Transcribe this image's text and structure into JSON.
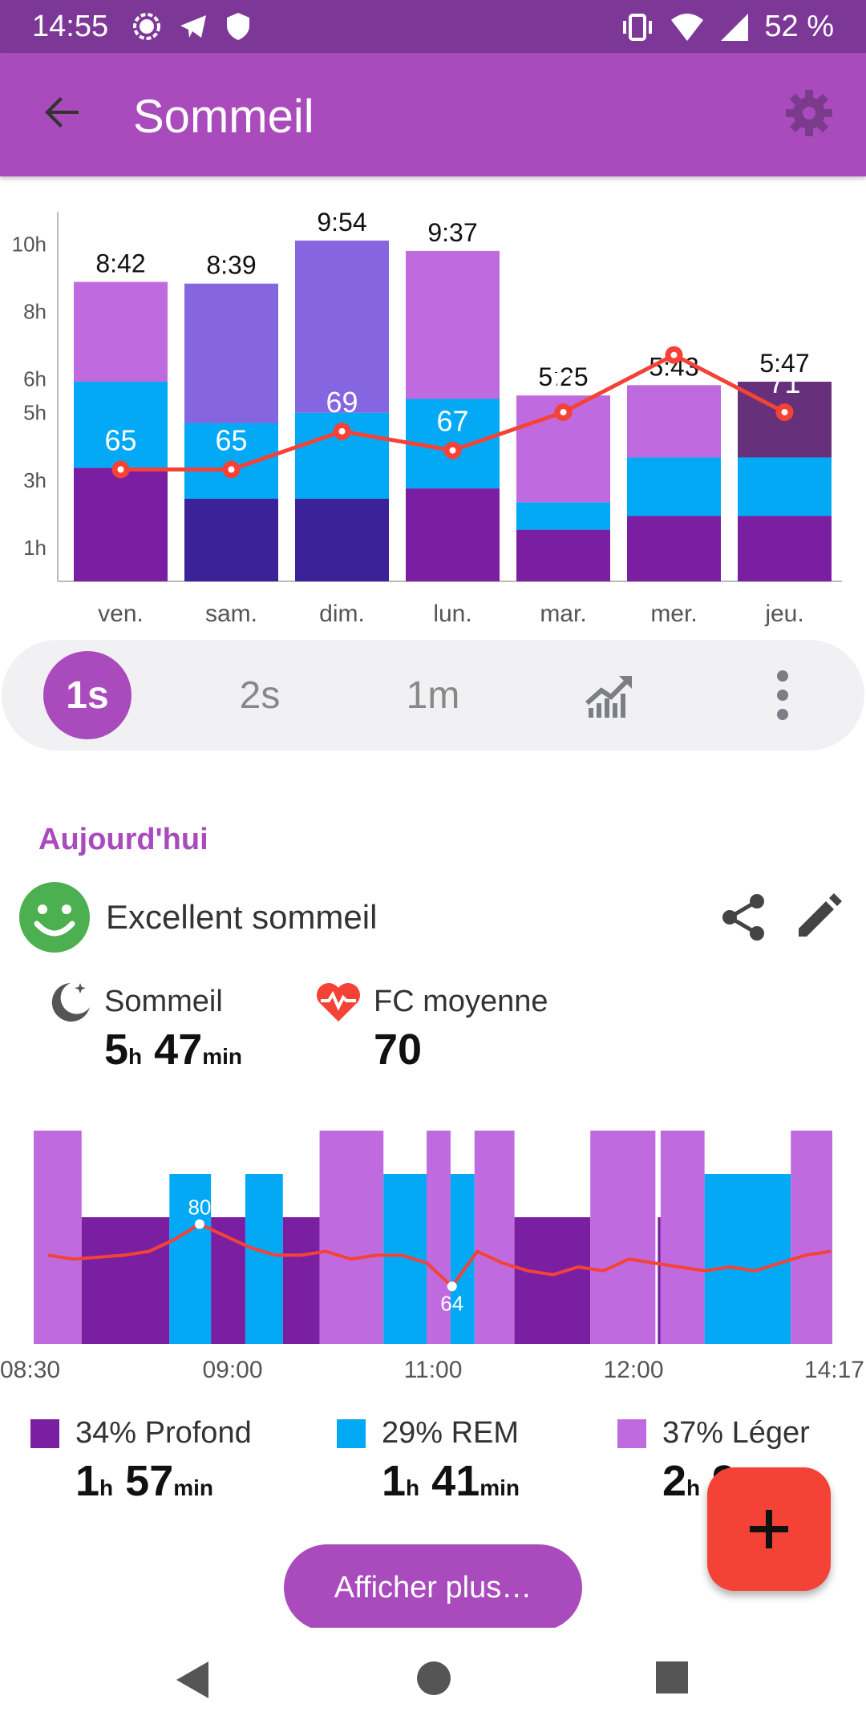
{
  "status_bar": {
    "time": "14:55",
    "battery": "52 %",
    "left_icons": [
      "signal-app-icon",
      "telegram-icon",
      "shield-icon"
    ],
    "right_icons": [
      "vibrate-icon",
      "wifi-icon",
      "cell-signal-icon"
    ]
  },
  "app_bar": {
    "title": "Sommeil",
    "back_icon": "arrow-back-icon",
    "settings_icon": "gear-icon",
    "background": "#a94bbd"
  },
  "colors": {
    "deep": "#7b1fa2",
    "deep_dark": "#3b2298",
    "rem": "#03a9f4",
    "light": "#c06ae0",
    "light_alt": "#8566e0",
    "deep_alt": "#66307a",
    "heart_rate": "#f44336",
    "accent": "#a94bbd"
  },
  "chart_data": [
    {
      "type": "bar",
      "stacked": true,
      "categories": [
        "ven.",
        "sam.",
        "dim.",
        "lun.",
        "mar.",
        "mer.",
        "jeu."
      ],
      "y_ticks": [
        "1h",
        "3h",
        "5h",
        "6h",
        "8h",
        "10h"
      ],
      "durations": [
        "8:42",
        "8:39",
        "9:54",
        "9:37",
        "5:25",
        "5:43",
        "5:47"
      ],
      "segments": [
        [
          {
            "phase": "deep",
            "hours": 3.3,
            "color": "#7b1fa2"
          },
          {
            "phase": "rem",
            "hours": 2.5,
            "color": "#03a9f4"
          },
          {
            "phase": "light",
            "hours": 2.9,
            "color": "#c06ae0"
          }
        ],
        [
          {
            "phase": "deep",
            "hours": 2.4,
            "color": "#3b2298"
          },
          {
            "phase": "rem",
            "hours": 2.2,
            "color": "#03a9f4"
          },
          {
            "phase": "light",
            "hours": 4.05,
            "color": "#8566e0"
          }
        ],
        [
          {
            "phase": "deep",
            "hours": 2.4,
            "color": "#3b2298"
          },
          {
            "phase": "rem",
            "hours": 2.5,
            "color": "#03a9f4"
          },
          {
            "phase": "light",
            "hours": 5.0,
            "color": "#8566e0"
          }
        ],
        [
          {
            "phase": "deep",
            "hours": 2.7,
            "color": "#7b1fa2"
          },
          {
            "phase": "rem",
            "hours": 2.6,
            "color": "#03a9f4"
          },
          {
            "phase": "light",
            "hours": 4.3,
            "color": "#c06ae0"
          }
        ],
        [
          {
            "phase": "deep",
            "hours": 1.5,
            "color": "#7b1fa2"
          },
          {
            "phase": "rem",
            "hours": 0.8,
            "color": "#03a9f4"
          },
          {
            "phase": "light",
            "hours": 3.1,
            "color": "#c06ae0"
          }
        ],
        [
          {
            "phase": "deep",
            "hours": 1.9,
            "color": "#7b1fa2"
          },
          {
            "phase": "rem",
            "hours": 1.7,
            "color": "#03a9f4"
          },
          {
            "phase": "light",
            "hours": 2.1,
            "color": "#c06ae0"
          }
        ],
        [
          {
            "phase": "deep",
            "hours": 1.9,
            "color": "#7b1fa2"
          },
          {
            "phase": "rem",
            "hours": 1.7,
            "color": "#03a9f4"
          },
          {
            "phase": "light",
            "hours": 2.2,
            "color": "#66307a"
          }
        ]
      ],
      "heart_rate": [
        65,
        65,
        69,
        67,
        71,
        77,
        71
      ],
      "ylim": [
        0,
        10.6
      ]
    },
    {
      "type": "bar",
      "x_labels": [
        "08:30",
        "09:00",
        "11:00",
        "12:00",
        "14:17"
      ],
      "phases": [
        [
          "light",
          0.0,
          0.06
        ],
        [
          "deep",
          0.06,
          0.17
        ],
        [
          "rem",
          0.17,
          0.222
        ],
        [
          "deep",
          0.222,
          0.265
        ],
        [
          "rem",
          0.265,
          0.312
        ],
        [
          "deep",
          0.312,
          0.358
        ],
        [
          "light",
          0.358,
          0.438
        ],
        [
          "rem",
          0.438,
          0.492
        ],
        [
          "light",
          0.492,
          0.522
        ],
        [
          "rem",
          0.522,
          0.552
        ],
        [
          "light",
          0.552,
          0.602
        ],
        [
          "deep",
          0.602,
          0.697
        ],
        [
          "light",
          0.697,
          0.78
        ],
        [
          "deep",
          0.78,
          0.785
        ],
        [
          "light",
          0.785,
          0.84
        ],
        [
          "rem",
          0.84,
          0.948
        ],
        [
          "light",
          0.948,
          1.0
        ]
      ],
      "phase_levels": {
        "light": 1.0,
        "rem": 0.8,
        "deep": 0.6
      },
      "heart_rate_curve": [
        72,
        71,
        71.5,
        72,
        73,
        76,
        80,
        77,
        74,
        72,
        72,
        73,
        71,
        72,
        72,
        70,
        64,
        73,
        70,
        68,
        67,
        69,
        68,
        71,
        70,
        69,
        68,
        69,
        68,
        70,
        72,
        73
      ],
      "heart_rate_range": [
        55,
        90
      ],
      "labels": [
        {
          "value": "80",
          "index": 6
        },
        {
          "value": "64",
          "index": 16
        }
      ]
    }
  ],
  "period_selector": {
    "options": [
      "1s",
      "2s",
      "1m"
    ],
    "selected": "1s",
    "trend_icon": "trending-chart-icon",
    "more_icon": "more-vert-icon"
  },
  "today": {
    "section_title": "Aujourd'hui",
    "quality_label": "Excellent sommeil",
    "quality_icon": "smiley-icon",
    "sleep_label": "Sommeil",
    "sleep_hours": "5",
    "sleep_minutes": "47",
    "hr_label": "FC moyenne",
    "hr_value": "70",
    "unit_h": "h",
    "unit_min": "min"
  },
  "legend": {
    "deep": {
      "label": "34% Profond",
      "hours": "1",
      "minutes": "57"
    },
    "rem": {
      "label": "29% REM",
      "hours": "1",
      "minutes": "41"
    },
    "light": {
      "label": "37% Léger",
      "hours": "2",
      "minutes": "9"
    }
  },
  "more_button": "Afficher plus…",
  "fab_icon": "plus-icon",
  "nav": {
    "back": "nav-back-icon",
    "home": "nav-home-icon",
    "recents": "nav-recents-icon"
  }
}
